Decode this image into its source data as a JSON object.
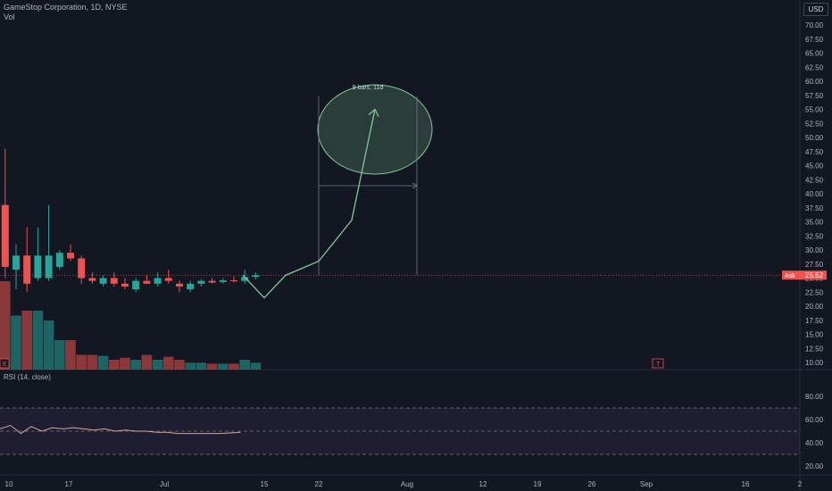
{
  "legend": {
    "title": "GameStop Corporation, 1D, NYSE",
    "vol": "Vol"
  },
  "currency": "USD",
  "price_axis": {
    "ticks": [
      "70.00",
      "67.50",
      "65.00",
      "62.50",
      "60.00",
      "57.50",
      "55.00",
      "52.50",
      "50.00",
      "47.50",
      "45.00",
      "42.50",
      "40.00",
      "37.50",
      "35.00",
      "32.50",
      "30.00",
      "27.50",
      "25.00",
      "22.50",
      "20.00",
      "17.50",
      "15.00",
      "12.50",
      "10.00"
    ],
    "last_price": "25.52",
    "last_tag": "Ask"
  },
  "rsi": {
    "label": "RSI (14, close)",
    "ticks": [
      "80.00",
      "60.00",
      "40.00",
      "20.00"
    ]
  },
  "time_axis": {
    "ticks": [
      "10",
      "17",
      "Jul",
      "15",
      "22",
      "Aug",
      "12",
      "19",
      "26",
      "Sep",
      "16",
      "2"
    ]
  },
  "annotation": {
    "range_label": "9 bars, 11d"
  },
  "markers": {
    "earnings_left": "E",
    "earnings_right": "T"
  },
  "colors": {
    "background": "#131722",
    "up": "#26a69a",
    "down": "#ef5350",
    "projection": "#81c995",
    "rsi_band": "#7e57c2"
  },
  "chart_data": {
    "type": "candlestick",
    "price_range": [
      10,
      70
    ],
    "candles": [
      {
        "o": 38,
        "h": 48,
        "l": 25,
        "c": 27
      },
      {
        "o": 26.5,
        "h": 31,
        "l": 23,
        "c": 29
      },
      {
        "o": 29,
        "h": 34,
        "l": 22.5,
        "c": 24
      },
      {
        "o": 25,
        "h": 34,
        "l": 24.5,
        "c": 29
      },
      {
        "o": 25,
        "h": 38,
        "l": 24.5,
        "c": 29
      },
      {
        "o": 27,
        "h": 30,
        "l": 26.5,
        "c": 29.5
      },
      {
        "o": 29.5,
        "h": 31,
        "l": 28,
        "c": 28.5
      },
      {
        "o": 28.5,
        "h": 29,
        "l": 24,
        "c": 25
      },
      {
        "o": 25,
        "h": 26,
        "l": 24,
        "c": 24.5
      },
      {
        "o": 24,
        "h": 25.5,
        "l": 23.5,
        "c": 25
      },
      {
        "o": 25,
        "h": 26,
        "l": 23.5,
        "c": 24
      },
      {
        "o": 24,
        "h": 25,
        "l": 23,
        "c": 23.5
      },
      {
        "o": 23,
        "h": 25,
        "l": 22.5,
        "c": 24.5
      },
      {
        "o": 24.5,
        "h": 25.5,
        "l": 24,
        "c": 24
      },
      {
        "o": 24,
        "h": 26,
        "l": 23.5,
        "c": 25
      },
      {
        "o": 25,
        "h": 26.5,
        "l": 24,
        "c": 24.5
      },
      {
        "o": 24,
        "h": 24.5,
        "l": 22.5,
        "c": 23.5
      },
      {
        "o": 23,
        "h": 24.5,
        "l": 22.5,
        "c": 24
      },
      {
        "o": 24,
        "h": 24.8,
        "l": 23.5,
        "c": 24.5
      },
      {
        "o": 24.5,
        "h": 25,
        "l": 24,
        "c": 24.2
      },
      {
        "o": 24.3,
        "h": 25,
        "l": 24,
        "c": 24.6
      },
      {
        "o": 24.6,
        "h": 25.3,
        "l": 24.2,
        "c": 24.5
      },
      {
        "o": 24.5,
        "h": 26.5,
        "l": 24,
        "c": 25.2
      },
      {
        "o": 25.2,
        "h": 26,
        "l": 24.8,
        "c": 25.5
      }
    ],
    "volume_rel": [
      0.9,
      0.55,
      0.6,
      0.6,
      0.5,
      0.3,
      0.3,
      0.15,
      0.15,
      0.14,
      0.1,
      0.12,
      0.1,
      0.15,
      0.1,
      0.13,
      0.1,
      0.07,
      0.07,
      0.06,
      0.06,
      0.06,
      0.1,
      0.07
    ],
    "projection": [
      25.5,
      21.5,
      25.5,
      28,
      35.3,
      55
    ],
    "rsi_values": [
      52,
      55,
      48,
      54,
      50,
      53,
      52,
      53,
      52,
      51,
      52,
      50,
      51,
      50,
      50,
      49,
      49,
      48,
      48,
      48,
      48,
      48,
      48.5,
      49
    ]
  }
}
